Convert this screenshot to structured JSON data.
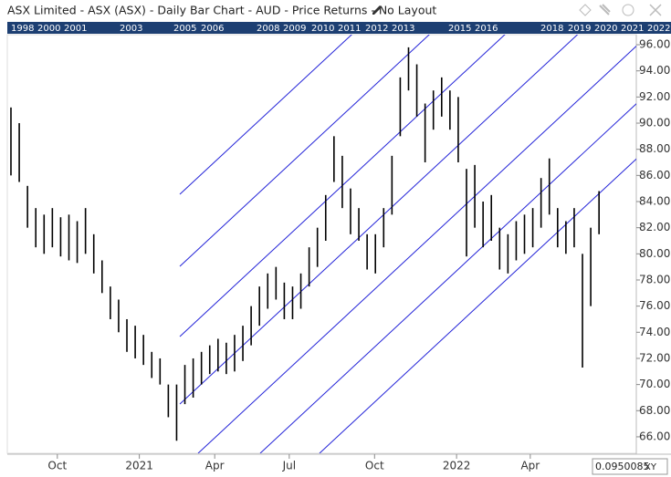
{
  "chart_data": {
    "type": "ohlc",
    "title": "ASX Limited - ASX (ASX) - Daily Bar Chart - AUD - Price Returns - No Layout",
    "timeline_years": [
      "1998",
      "2000",
      "2001",
      "2003",
      "2005",
      "2006",
      "2008",
      "2009",
      "2010",
      "2011",
      "2012",
      "2013",
      "2015",
      "2016",
      "2018",
      "2019",
      "2020",
      "2021",
      "2022"
    ],
    "color": "#000000",
    "channel_color": "#2323d8",
    "high": [
      91.2,
      90,
      85.2,
      83.5,
      83,
      83.5,
      82.8,
      83,
      82.5,
      83.5,
      81.5,
      79.5,
      77.5,
      76.5,
      75,
      74.5,
      73.8,
      72.5,
      72,
      70,
      70,
      71.5,
      72,
      72.5,
      73,
      73.5,
      73.2,
      73.8,
      74.5,
      76,
      77.5,
      78.5,
      79,
      77.8,
      77.5,
      78.5,
      80.5,
      82,
      84.5,
      89,
      87.5,
      85,
      83.5,
      81.5,
      81.5,
      83.5,
      87.5,
      93.5,
      95.8,
      94.5,
      91.5,
      92.5,
      93.5,
      92.5,
      92,
      86.5,
      86.8,
      84,
      84.5,
      82,
      81.5,
      82.5,
      83,
      83.5,
      85.8,
      87.3,
      83.5,
      82.5,
      83.5,
      80,
      82,
      84.8
    ],
    "low": [
      86,
      85.5,
      82,
      80.5,
      80,
      80.5,
      79.8,
      79.5,
      79.3,
      80,
      78.5,
      77,
      75,
      74,
      72.5,
      72,
      71.5,
      70.5,
      70,
      67.5,
      65.7,
      68.5,
      69,
      70,
      70.8,
      71,
      70.8,
      71,
      71.8,
      73,
      74.5,
      75.8,
      76.5,
      75,
      75,
      75.8,
      77.5,
      79,
      81,
      85.5,
      83.5,
      81.5,
      81,
      78.8,
      78.5,
      80.5,
      83,
      89,
      92.5,
      90.5,
      87,
      89.5,
      90.5,
      89.5,
      87,
      79.8,
      82,
      80.5,
      81,
      78.8,
      78.5,
      79.5,
      80,
      80.5,
      82,
      83,
      80.5,
      80,
      80.5,
      71.3,
      76,
      81.5
    ],
    "xlim": [
      -0.44,
      75.5
    ],
    "xticks": [
      {
        "value": 5.6,
        "label": "Oct"
      },
      {
        "value": 15.5,
        "label": "2021"
      },
      {
        "value": 24.6,
        "label": "Apr"
      },
      {
        "value": 33.6,
        "label": "Jul"
      },
      {
        "value": 43.9,
        "label": "Oct"
      },
      {
        "value": 53.8,
        "label": "2022"
      },
      {
        "value": 62.7,
        "label": "Apr"
      }
    ],
    "ylim": [
      64.74,
      96.77
    ],
    "yticks": [
      {
        "value": 66,
        "label": "66.00"
      },
      {
        "value": 68,
        "label": "68.00"
      },
      {
        "value": 70,
        "label": "70.00"
      },
      {
        "value": 72,
        "label": "72.00"
      },
      {
        "value": 74,
        "label": "74.00"
      },
      {
        "value": 76,
        "label": "76.00"
      },
      {
        "value": 78,
        "label": "78.00"
      },
      {
        "value": 80,
        "label": "80.00"
      },
      {
        "value": 82,
        "label": "82.00"
      },
      {
        "value": 84,
        "label": "84.00"
      },
      {
        "value": 86,
        "label": "86.00"
      },
      {
        "value": 88,
        "label": "88.00"
      },
      {
        "value": 90,
        "label": "90.00"
      },
      {
        "value": 92,
        "label": "92.00"
      },
      {
        "value": 94,
        "label": "94.00"
      },
      {
        "value": 96,
        "label": "96.00"
      }
    ],
    "cursor_value": "0.0950085",
    "cursor_mode": "XY"
  }
}
